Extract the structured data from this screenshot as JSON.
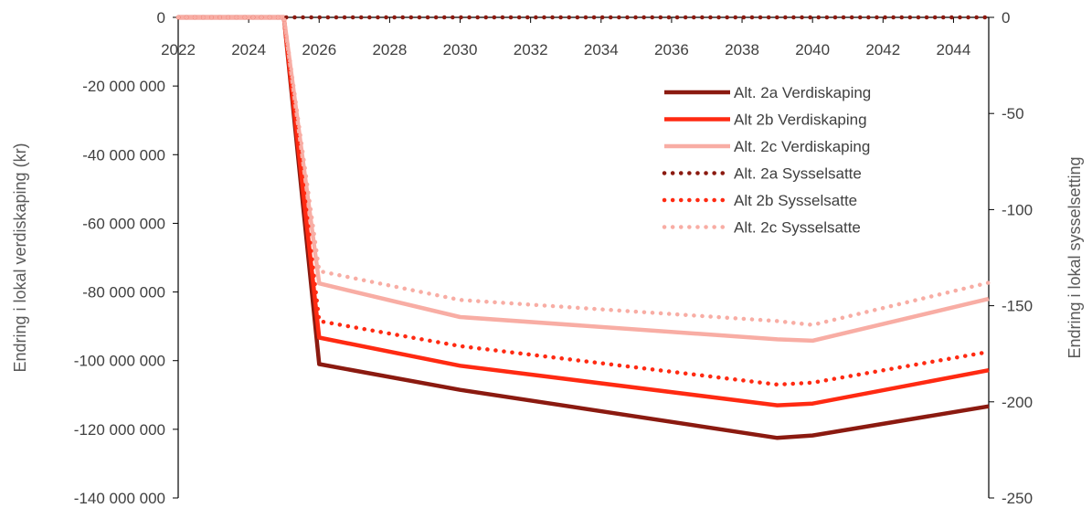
{
  "chart_data": {
    "type": "line",
    "title": "",
    "xlabel": "",
    "ylabel": "Endring i lokal verdiskaping (kr)",
    "y2label": "Endring i lokal sysselsetting",
    "x_ticks": [
      "2022",
      "2024",
      "2026",
      "2028",
      "2030",
      "2032",
      "2034",
      "2036",
      "2038",
      "2040",
      "2042",
      "2044"
    ],
    "xlim": [
      2022,
      2045
    ],
    "ylim": [
      -140000000,
      0
    ],
    "y_ticks": [
      0,
      -20000000,
      -40000000,
      -60000000,
      -80000000,
      -100000000,
      -120000000,
      -140000000
    ],
    "y_tick_labels": [
      "0",
      "-20 000 000",
      "-40 000 000",
      "-60 000 000",
      "-80 000 000",
      "-100 000 000",
      "-120 000 000",
      "-140 000 000"
    ],
    "y2lim": [
      -250,
      0
    ],
    "y2_ticks": [
      0,
      -50,
      -100,
      -150,
      -200,
      -250
    ],
    "y2_tick_labels": [
      "0",
      "-50",
      "-100",
      "-150",
      "-200",
      "-250"
    ],
    "legend_position": "top-right",
    "grid": false,
    "series": [
      {
        "name": "Alt. 2a Verdiskaping",
        "axis": "left",
        "style": "solid",
        "color": "#8B1A10",
        "x": [
          2022,
          2025,
          2026,
          2030,
          2039,
          2040,
          2045
        ],
        "y": [
          0,
          0,
          -101000000,
          -108500000,
          -122500000,
          -121800000,
          -113300000
        ]
      },
      {
        "name": "Alt 2b Verdiskaping",
        "axis": "left",
        "style": "solid",
        "color": "#FF2A12",
        "x": [
          2022,
          2025,
          2026,
          2030,
          2039,
          2040,
          2045
        ],
        "y": [
          0,
          0,
          -93300000,
          -101500000,
          -113000000,
          -112500000,
          -102800000
        ]
      },
      {
        "name": "Alt. 2c Verdiskaping",
        "axis": "left",
        "style": "solid",
        "color": "#F8ADA4",
        "x": [
          2022,
          2025,
          2026,
          2030,
          2039,
          2040,
          2045
        ],
        "y": [
          0,
          0,
          -77500000,
          -87300000,
          -93800000,
          -94200000,
          -82000000
        ]
      },
      {
        "name": "Alt. 2a Sysselsatte",
        "axis": "right",
        "style": "dotted",
        "color": "#8B1A10",
        "x": [
          2022,
          2045
        ],
        "y": [
          0,
          0
        ]
      },
      {
        "name": "Alt 2b Sysselsatte",
        "axis": "right",
        "style": "dotted",
        "color": "#FF2A12",
        "x": [
          2022,
          2025,
          2026,
          2030,
          2039,
          2040,
          2045
        ],
        "y": [
          0,
          0,
          -158,
          -171,
          -191,
          -190,
          -174
        ]
      },
      {
        "name": "Alt. 2c Sysselsatte",
        "axis": "right",
        "style": "dotted",
        "color": "#F8ADA4",
        "x": [
          2022,
          2025,
          2026,
          2030,
          2039,
          2040,
          2045
        ],
        "y": [
          0,
          0,
          -132,
          -147,
          -158,
          -160,
          -138
        ]
      }
    ]
  }
}
